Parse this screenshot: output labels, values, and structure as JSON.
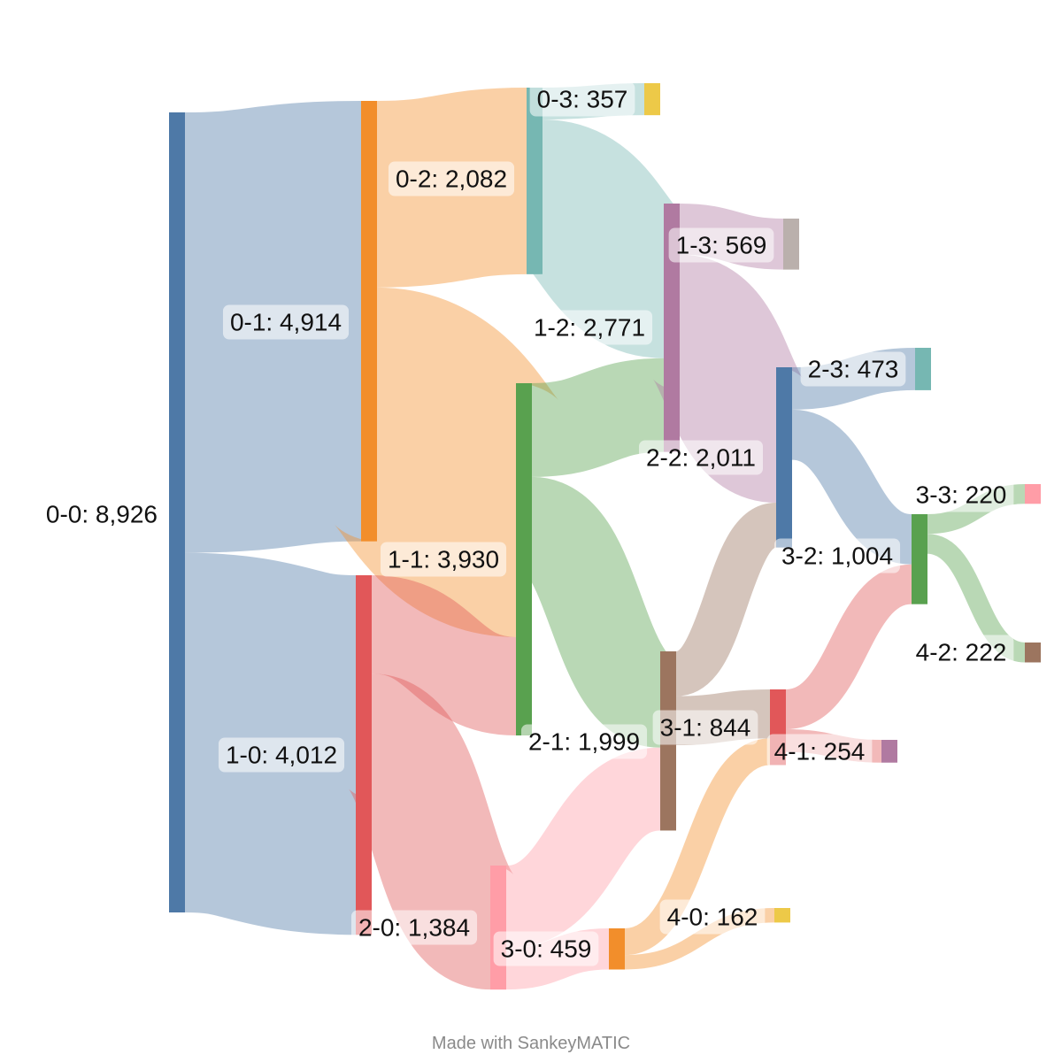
{
  "chart_data": {
    "type": "sankey",
    "nodes": [
      {
        "id": "0-0",
        "label": "0-0: 8,926",
        "value": 8926,
        "color": "#4e79a7"
      },
      {
        "id": "0-1",
        "label": "0-1: 4,914",
        "value": 4914,
        "color": "#f28e2b"
      },
      {
        "id": "1-0",
        "label": "1-0: 4,012",
        "value": 4012,
        "color": "#e15759"
      },
      {
        "id": "0-2",
        "label": "0-2: 2,082",
        "value": 2082,
        "color": "#76b7b2"
      },
      {
        "id": "1-1",
        "label": "1-1: 3,930",
        "value": 3930,
        "color": "#59a14f"
      },
      {
        "id": "2-0",
        "label": "2-0: 1,384",
        "value": 1384,
        "color": "#ff9da7"
      },
      {
        "id": "0-3",
        "label": "0-3: 357",
        "value": 357,
        "color": "#edc948"
      },
      {
        "id": "1-2",
        "label": "1-2: 2,771",
        "value": 2771,
        "color": "#b07aa1"
      },
      {
        "id": "2-1",
        "label": "2-1: 1,999",
        "value": 1999,
        "color": "#9c755f"
      },
      {
        "id": "3-0",
        "label": "3-0: 459",
        "value": 459,
        "color": "#f28e2b"
      },
      {
        "id": "1-3",
        "label": "1-3: 569",
        "value": 569,
        "color": "#bab0ac"
      },
      {
        "id": "2-2",
        "label": "2-2: 2,011",
        "value": 2011,
        "color": "#4e79a7"
      },
      {
        "id": "3-1",
        "label": "3-1: 844",
        "value": 844,
        "color": "#e15759"
      },
      {
        "id": "4-0",
        "label": "4-0: 162",
        "value": 162,
        "color": "#edc948"
      },
      {
        "id": "2-3",
        "label": "2-3: 473",
        "value": 473,
        "color": "#76b7b2"
      },
      {
        "id": "3-2",
        "label": "3-2: 1,004",
        "value": 1004,
        "color": "#59a14f"
      },
      {
        "id": "4-1",
        "label": "4-1: 254",
        "value": 254,
        "color": "#b07aa1"
      },
      {
        "id": "3-3",
        "label": "3-3: 220",
        "value": 220,
        "color": "#ff9da7"
      },
      {
        "id": "4-2",
        "label": "4-2: 222",
        "value": 222,
        "color": "#9c755f"
      }
    ],
    "links": [
      {
        "source": "0-0",
        "target": "0-1",
        "value": 4914
      },
      {
        "source": "0-0",
        "target": "1-0",
        "value": 4012
      },
      {
        "source": "0-1",
        "target": "0-2",
        "value": 2082
      },
      {
        "source": "0-1",
        "target": "1-1",
        "value": 2832
      },
      {
        "source": "1-0",
        "target": "1-1",
        "value": 1098
      },
      {
        "source": "1-0",
        "target": "2-0",
        "value": 1384
      },
      {
        "source": "0-2",
        "target": "0-3",
        "value": 357
      },
      {
        "source": "0-2",
        "target": "1-2",
        "value": 1725
      },
      {
        "source": "1-1",
        "target": "1-2",
        "value": 1046
      },
      {
        "source": "1-1",
        "target": "2-1",
        "value": 1074
      },
      {
        "source": "2-0",
        "target": "2-1",
        "value": 925
      },
      {
        "source": "2-0",
        "target": "3-0",
        "value": 459
      },
      {
        "source": "1-2",
        "target": "1-3",
        "value": 569
      },
      {
        "source": "1-2",
        "target": "2-2",
        "value": 1511
      },
      {
        "source": "2-1",
        "target": "2-2",
        "value": 500
      },
      {
        "source": "2-1",
        "target": "3-1",
        "value": 547
      },
      {
        "source": "3-0",
        "target": "3-1",
        "value": 297
      },
      {
        "source": "3-0",
        "target": "4-0",
        "value": 162
      },
      {
        "source": "2-2",
        "target": "2-3",
        "value": 473
      },
      {
        "source": "2-2",
        "target": "3-2",
        "value": 560
      },
      {
        "source": "3-1",
        "target": "3-2",
        "value": 444
      },
      {
        "source": "3-1",
        "target": "4-1",
        "value": 254
      },
      {
        "source": "3-2",
        "target": "3-3",
        "value": 220
      },
      {
        "source": "3-2",
        "target": "4-2",
        "value": 222
      }
    ]
  },
  "footer": {
    "text": "Made with SankeyMATIC"
  }
}
